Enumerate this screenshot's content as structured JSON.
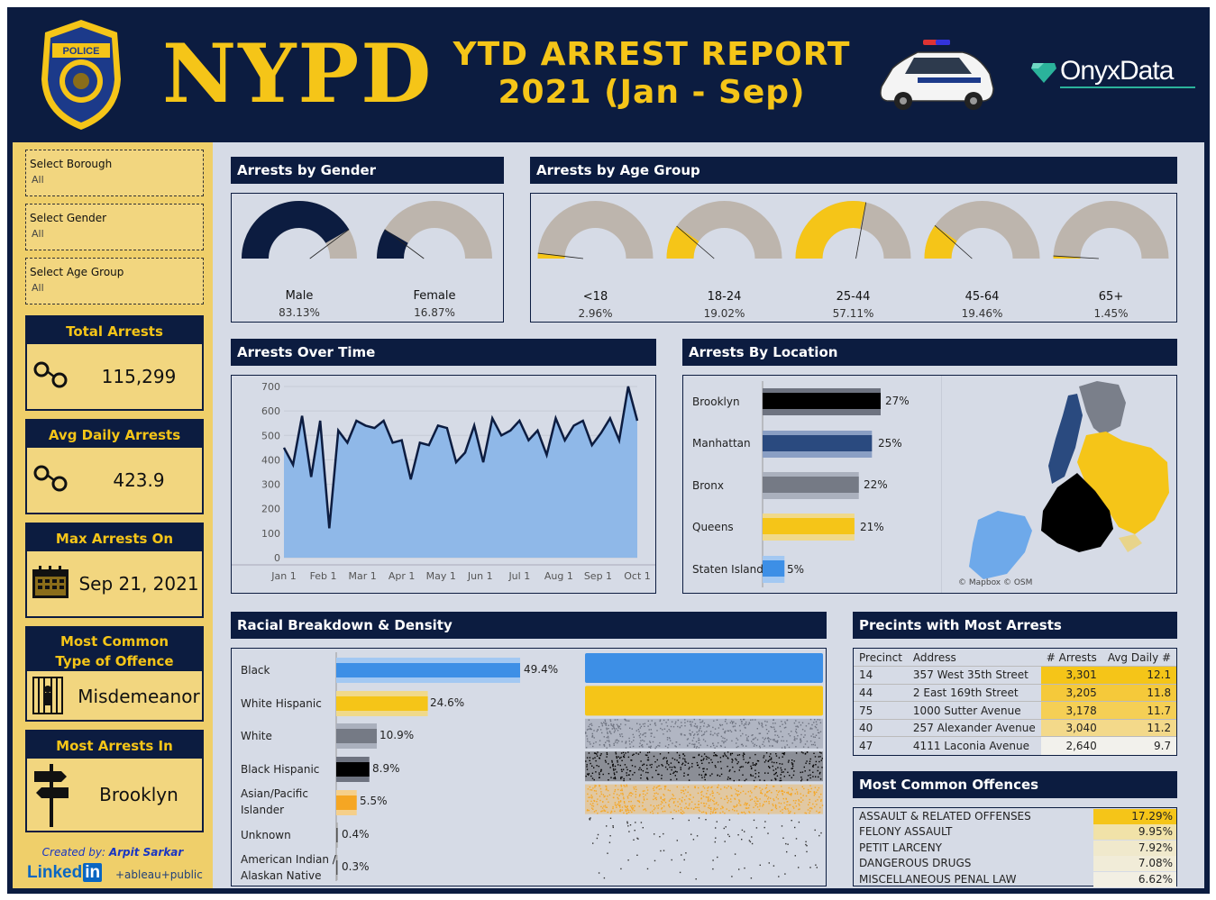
{
  "header": {
    "brand": "NYPD",
    "title_line1": "YTD ARREST REPORT",
    "title_line2": "2021 (Jan - Sep)",
    "partner": "OnyxData",
    "badge_icon": "police-badge-icon",
    "car_icon": "police-car-icon"
  },
  "filters": [
    {
      "label": "Select Borough",
      "value": "All"
    },
    {
      "label": "Select Gender",
      "value": "All"
    },
    {
      "label": "Select Age Group",
      "value": "All"
    }
  ],
  "kpis": {
    "total": {
      "title": "Total Arrests",
      "value": "115,299",
      "icon": "handcuffs-icon"
    },
    "avg_daily": {
      "title": "Avg Daily Arrests",
      "value": "423.9",
      "icon": "handcuffs-icon"
    },
    "max_on": {
      "title": "Max Arrests On",
      "value": "Sep 21, 2021",
      "icon": "calendar-icon"
    },
    "offence": {
      "title_line1": "Most Common",
      "title_line2": "Type of Offence",
      "value": "Misdemeanor",
      "icon": "jail-icon"
    },
    "most_in": {
      "title": "Most Arrests In",
      "value": "Brooklyn",
      "icon": "signpost-icon"
    }
  },
  "credits": {
    "created_by": "Created by:",
    "author": "Arpit Sarkar",
    "linkedin": "Linked",
    "linkedin_in": "in",
    "tableau": "+ableau+public"
  },
  "gender": {
    "title": "Arrests by Gender",
    "items": [
      {
        "label": "Male",
        "pct_text": "83.13%",
        "value": 0.8313,
        "color": "#0c1c40"
      },
      {
        "label": "Female",
        "pct_text": "16.87%",
        "value": 0.1687,
        "color": "#0c1c40"
      }
    ]
  },
  "age": {
    "title": "Arrests by Age Group",
    "items": [
      {
        "label": "<18",
        "pct_text": "2.96%",
        "value": 0.0296
      },
      {
        "label": "18-24",
        "pct_text": "19.02%",
        "value": 0.1902
      },
      {
        "label": "25-44",
        "pct_text": "57.11%",
        "value": 0.5711
      },
      {
        "label": "45-64",
        "pct_text": "19.46%",
        "value": 0.1946
      },
      {
        "label": "65+",
        "pct_text": "1.45%",
        "value": 0.0145
      }
    ]
  },
  "over_time": {
    "title": "Arrests Over Time",
    "x_labels": [
      "Jan 1",
      "Feb 1",
      "Mar 1",
      "Apr 1",
      "May 1",
      "Jun 1",
      "Jul 1",
      "Aug 1",
      "Sep 1",
      "Oct 1"
    ],
    "y_labels": [
      "700",
      "600",
      "500",
      "400",
      "300",
      "200",
      "100",
      "0"
    ]
  },
  "chart_data": {
    "type": "area",
    "title": "Arrests Over Time",
    "x_range": [
      "2021-01-01",
      "2021-09-30"
    ],
    "ylim": [
      0,
      700
    ],
    "y_ticks": [
      0,
      100,
      200,
      300,
      400,
      500,
      600,
      700
    ],
    "approx_weekly_values": [
      450,
      380,
      580,
      330,
      560,
      120,
      520,
      470,
      560,
      540,
      530,
      560,
      470,
      480,
      320,
      470,
      460,
      540,
      530,
      390,
      430,
      540,
      390,
      570,
      500,
      520,
      560,
      480,
      520,
      420,
      570,
      480,
      540,
      560,
      460,
      510,
      570,
      480,
      700,
      560
    ],
    "ymean": 423.9,
    "max_point": {
      "date": "2021-09-21",
      "value": 700
    }
  },
  "location": {
    "title": "Arrests By Location",
    "items": [
      {
        "label": "Brooklyn",
        "pct_text": "27%",
        "value": 27,
        "color": "#000000",
        "shadow": "#6e7380"
      },
      {
        "label": "Manhattan",
        "pct_text": "25%",
        "value": 25,
        "color": "#2a4a7f",
        "shadow": "#8a9fc4"
      },
      {
        "label": "Bronx",
        "pct_text": "22%",
        "value": 22,
        "color": "#757a85",
        "shadow": "#aab0bd"
      },
      {
        "label": "Queens",
        "pct_text": "21%",
        "value": 21,
        "color": "#f5c518",
        "shadow": "#f0d98a"
      },
      {
        "label": "Staten Island",
        "pct_text": "5%",
        "value": 5,
        "color": "#3d8fe6",
        "shadow": "#a3c8f2"
      }
    ],
    "map_credit": "© Mapbox © OSM"
  },
  "race": {
    "title": "Racial Breakdown & Density",
    "items": [
      {
        "label": "Black",
        "pct_text": "49.4%",
        "value": 49.4,
        "color": "#3d8fe6",
        "shadow": "#a3c8f2"
      },
      {
        "label": "White Hispanic",
        "pct_text": "24.6%",
        "value": 24.6,
        "color": "#f5c518",
        "shadow": "#f0d98a"
      },
      {
        "label": "White",
        "pct_text": "10.9%",
        "value": 10.9,
        "color": "#757a85",
        "shadow": "#aab0bd"
      },
      {
        "label": "Black Hispanic",
        "pct_text": "8.9%",
        "value": 8.9,
        "color": "#000000",
        "shadow": "#6e7380"
      },
      {
        "label": "Asian/Pacific Islander",
        "label_line1": "Asian/Pacific",
        "label_line2": "Islander",
        "pct_text": "5.5%",
        "value": 5.5,
        "color": "#f5a623",
        "shadow": "#f5cf8a"
      },
      {
        "label": "Unknown",
        "pct_text": "0.4%",
        "value": 0.4,
        "color": "#555555",
        "shadow": "#aaaaaa"
      },
      {
        "label": "American Indian / Alaskan Native",
        "label_line1": "American Indian /",
        "label_line2": "Alaskan Native",
        "pct_text": "0.3%",
        "value": 0.3,
        "color": "#555555",
        "shadow": "#aaaaaa"
      }
    ]
  },
  "precincts": {
    "title": "Precints with Most Arrests",
    "headers": [
      "Precinct",
      "Address",
      "# Arrests",
      "Avg Daily #"
    ],
    "rows": [
      {
        "precinct": "14",
        "address": "357 West 35th Street",
        "arrests": "3,301",
        "avg": "12.1",
        "shade": "#f5c518"
      },
      {
        "precinct": "44",
        "address": "2 East 169th Street",
        "arrests": "3,205",
        "avg": "11.8",
        "shade": "#f5c93a"
      },
      {
        "precinct": "75",
        "address": "1000 Sutter Avenue",
        "arrests": "3,178",
        "avg": "11.7",
        "shade": "#f5cf55"
      },
      {
        "precinct": "40",
        "address": "257 Alexander Avenue",
        "arrests": "3,040",
        "avg": "11.2",
        "shade": "#f3d98a"
      },
      {
        "precinct": "47",
        "address": "4111 Laconia Avenue",
        "arrests": "2,640",
        "avg": "9.7",
        "shade": "#f2f1ec"
      }
    ]
  },
  "offences": {
    "title": "Most Common Offences",
    "rows": [
      {
        "name": "ASSAULT & RELATED OFFENSES",
        "pct": "17.29%",
        "shade": "#f5c518"
      },
      {
        "name": "FELONY ASSAULT",
        "pct": "9.95%",
        "shade": "#f1e2a8"
      },
      {
        "name": "PETIT LARCENY",
        "pct": "7.92%",
        "shade": "#f0e9cc"
      },
      {
        "name": "DANGEROUS DRUGS",
        "pct": "7.08%",
        "shade": "#f1ecd8"
      },
      {
        "name": "MISCELLANEOUS PENAL LAW",
        "pct": "6.62%",
        "shade": "#f2efe3"
      }
    ]
  }
}
